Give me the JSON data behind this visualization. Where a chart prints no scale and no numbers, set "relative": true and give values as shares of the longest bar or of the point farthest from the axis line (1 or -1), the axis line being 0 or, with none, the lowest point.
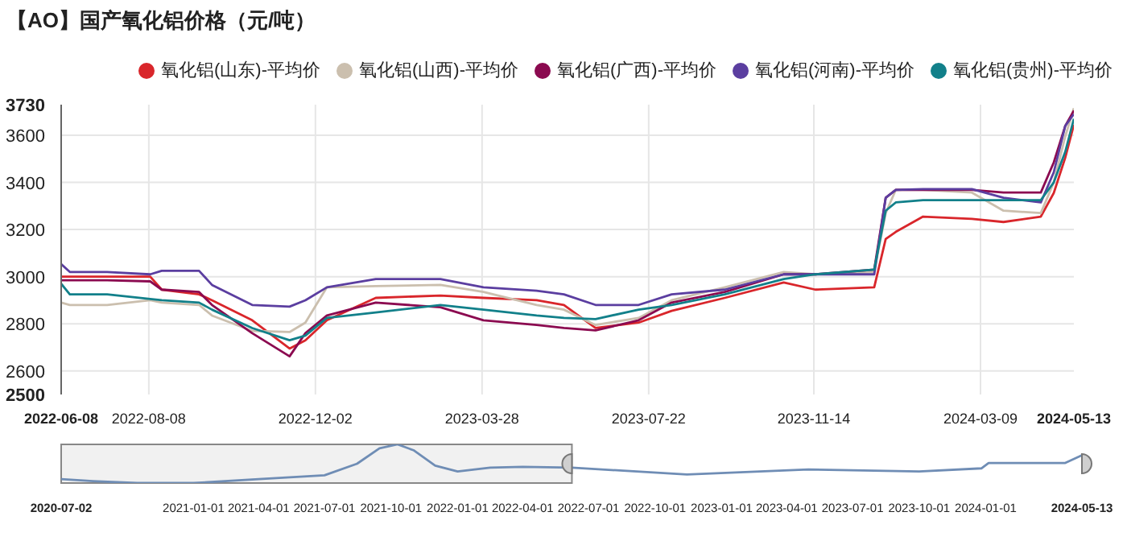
{
  "chart_data": [
    {
      "type": "line",
      "title": "【AO】国产氧化铝价格（元/吨）",
      "x": [
        "2022-06-08",
        "2022-06-14",
        "2022-07-10",
        "2022-08-09",
        "2022-08-17",
        "2022-09-12",
        "2022-09-21",
        "2022-10-19",
        "2022-11-14",
        "2022-11-25",
        "2022-12-10",
        "2023-01-13",
        "2023-02-27",
        "2023-03-29",
        "2023-05-05",
        "2023-05-24",
        "2023-06-15",
        "2023-07-15",
        "2023-08-07",
        "2023-09-13",
        "2023-10-24",
        "2023-11-15",
        "2023-12-26",
        "2024-01-03",
        "2024-01-10",
        "2024-01-29",
        "2024-03-03",
        "2024-03-25",
        "2024-04-20",
        "2024-04-29",
        "2024-05-07",
        "2024-05-13"
      ],
      "series": [
        {
          "name": "氧化铝(山东)-平均价",
          "color": "#d9262b",
          "values": [
            3000,
            3000,
            3000,
            3000,
            2945,
            2925,
            2900,
            2815,
            2695,
            2730,
            2815,
            2910,
            2920,
            2910,
            2900,
            2880,
            2782,
            2805,
            2855,
            2910,
            2975,
            2945,
            2955,
            3160,
            3190,
            3255,
            3245,
            3232,
            3255,
            3355,
            3505,
            3645
          ]
        },
        {
          "name": "氧化铝(山西)-平均价",
          "color": "#cbbfae",
          "values": [
            2890,
            2880,
            2880,
            2900,
            2890,
            2880,
            2835,
            2770,
            2765,
            2805,
            2955,
            2960,
            2965,
            2935,
            2880,
            2860,
            2795,
            2825,
            2900,
            2955,
            3020,
            3010,
            3020,
            3270,
            3368,
            3368,
            3357,
            3280,
            3270,
            3400,
            3595,
            3715
          ]
        },
        {
          "name": "氧化铝(广西)-平均价",
          "color": "#8b0a50",
          "values": [
            2985,
            2985,
            2985,
            2980,
            2945,
            2935,
            2880,
            2760,
            2662,
            2760,
            2835,
            2890,
            2870,
            2815,
            2795,
            2782,
            2772,
            2815,
            2890,
            2935,
            3010,
            3010,
            3030,
            3335,
            3368,
            3368,
            3368,
            3357,
            3357,
            3485,
            3640,
            3705
          ]
        },
        {
          "name": "氧化铝(河南)-平均价",
          "color": "#5b3ea0",
          "values": [
            3053,
            3020,
            3020,
            3010,
            3025,
            3025,
            2965,
            2880,
            2873,
            2900,
            2955,
            2990,
            2990,
            2955,
            2940,
            2925,
            2880,
            2880,
            2925,
            2945,
            3010,
            3010,
            3010,
            3335,
            3368,
            3372,
            3372,
            3335,
            3315,
            3443,
            3640,
            3690
          ]
        },
        {
          "name": "氧化铝(贵州)-平均价",
          "color": "#12808a",
          "values": [
            2970,
            2925,
            2925,
            2905,
            2900,
            2890,
            2860,
            2782,
            2730,
            2750,
            2825,
            2848,
            2880,
            2860,
            2835,
            2825,
            2820,
            2860,
            2880,
            2925,
            2990,
            3010,
            3030,
            3280,
            3315,
            3325,
            3325,
            3325,
            3325,
            3400,
            3530,
            3670
          ]
        }
      ],
      "xlim": [
        "2022-06-08",
        "2024-05-13"
      ],
      "xticks": [
        "2022-06-08",
        "2022-08-08",
        "2022-12-02",
        "2023-03-28",
        "2023-07-22",
        "2023-11-14",
        "2024-03-09",
        "2024-05-13"
      ],
      "ylim": [
        2500,
        3730
      ],
      "yticks": [
        2500,
        2600,
        2800,
        3000,
        3200,
        3400,
        3600,
        3730
      ],
      "grid": true,
      "legend": "top",
      "marker": "none"
    },
    {
      "type": "line",
      "relative": true,
      "tick_labels": "x",
      "x": [
        "2020-07-02",
        "2020-08-15",
        "2020-10-15",
        "2021-01-01",
        "2021-04-01",
        "2021-07-01",
        "2021-08-15",
        "2021-09-15",
        "2021-10-10",
        "2021-11-01",
        "2021-12-01",
        "2022-01-01",
        "2022-02-15",
        "2022-04-01",
        "2022-06-08",
        "2022-11-14",
        "2023-05-01",
        "2023-10-01",
        "2023-12-26",
        "2024-01-05",
        "2024-04-20",
        "2024-05-13"
      ],
      "series": [
        {
          "color": "#6f8db5",
          "values": [
            0.1,
            0.05,
            0,
            0,
            0.1,
            0.2,
            0.5,
            0.9,
            1,
            0.85,
            0.45,
            0.3,
            0.4,
            0.42,
            0.4,
            0.22,
            0.35,
            0.3,
            0.38,
            0.52,
            0.52,
            0.72
          ]
        }
      ],
      "xlim": [
        "2020-07-02",
        "2024-05-13"
      ],
      "xticks": [
        "2020-07-02",
        "2021-01-01",
        "2021-04-01",
        "2021-07-01",
        "2021-10-01",
        "2022-01-01",
        "2022-04-01",
        "2022-07-01",
        "2022-10-01",
        "2023-01-01",
        "2023-04-01",
        "2023-07-01",
        "2023-10-01",
        "2024-01-01",
        "2024-05-13"
      ],
      "bands": [
        {
          "axis": "x",
          "from": "2020-07-02",
          "to": "2022-06-08",
          "color": "#888888"
        }
      ],
      "marker": "none"
    }
  ]
}
